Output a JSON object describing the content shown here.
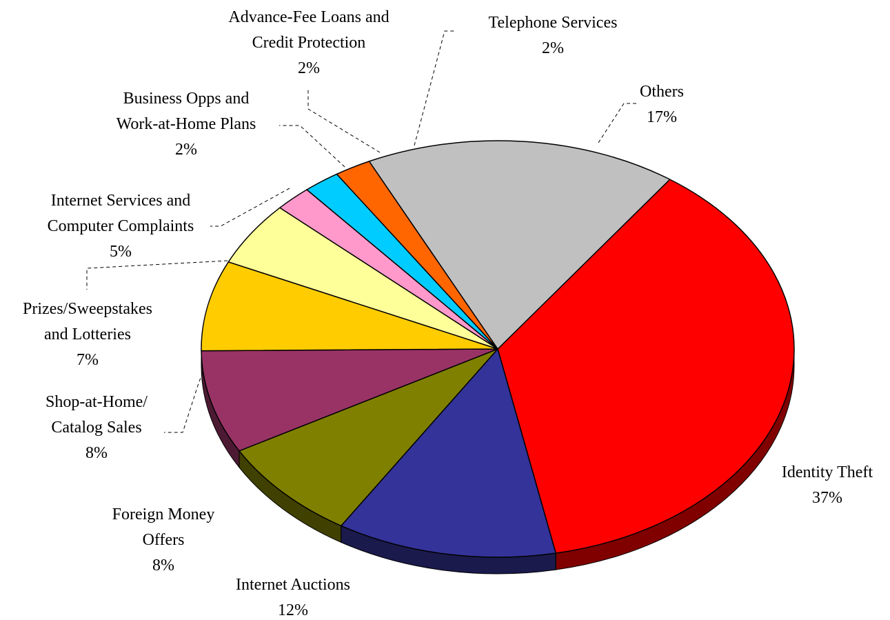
{
  "chart_data": {
    "type": "pie",
    "style": "3d-tilted",
    "slices": [
      {
        "name_lines": [
          "Identity Theft"
        ],
        "name": "Identity Theft",
        "value": 37,
        "pct_label": "37%",
        "color": "#FF0000",
        "side_color": "#800000"
      },
      {
        "name_lines": [
          "Internet Auctions"
        ],
        "name": "Internet Auctions",
        "value": 12,
        "pct_label": "12%",
        "color": "#333399",
        "side_color": "#1A1A4D"
      },
      {
        "name_lines": [
          "Foreign Money",
          "Offers"
        ],
        "name": "Foreign Money Offers",
        "value": 8,
        "pct_label": "8%",
        "color": "#808000",
        "side_color": "#404000"
      },
      {
        "name_lines": [
          "Shop-at-Home/",
          "Catalog Sales"
        ],
        "name": "Shop-at-Home/ Catalog Sales",
        "value": 8,
        "pct_label": "8%",
        "color": "#993366",
        "side_color": "#4D1A33"
      },
      {
        "name_lines": [
          "Prizes/Sweepstakes",
          "and Lotteries"
        ],
        "name": "Prizes/Sweepstakes and Lotteries",
        "value": 7,
        "pct_label": "7%",
        "color": "#FFCC00",
        "side_color": "#806600"
      },
      {
        "name_lines": [
          "Internet Services and",
          "Computer Complaints"
        ],
        "name": "Internet Services and Computer Complaints",
        "value": 5,
        "pct_label": "5%",
        "color": "#FFFF99",
        "side_color": "#80804D"
      },
      {
        "name_lines": [
          "Business Opps and",
          "Work-at-Home Plans"
        ],
        "name": "Business Opps and Work-at-Home Plans",
        "value": 2,
        "pct_label": "2%",
        "color": "#FF99CC",
        "side_color": "#804D66"
      },
      {
        "name_lines": [
          "Advance-Fee Loans and",
          "Credit Protection"
        ],
        "name": "Advance-Fee Loans and Credit Protection",
        "value": 2,
        "pct_label": "2%",
        "color": "#00CCFF",
        "side_color": "#006680"
      },
      {
        "name_lines": [
          "Telephone Services"
        ],
        "name": "Telephone Services",
        "value": 2,
        "pct_label": "2%",
        "color": "#FF6600",
        "side_color": "#803300"
      },
      {
        "name_lines": [
          "Others"
        ],
        "name": "Others",
        "value": 17,
        "pct_label": "17%",
        "color": "#C0C0C0",
        "side_color": "#606060"
      }
    ],
    "labels_with_leader_lines": true
  }
}
